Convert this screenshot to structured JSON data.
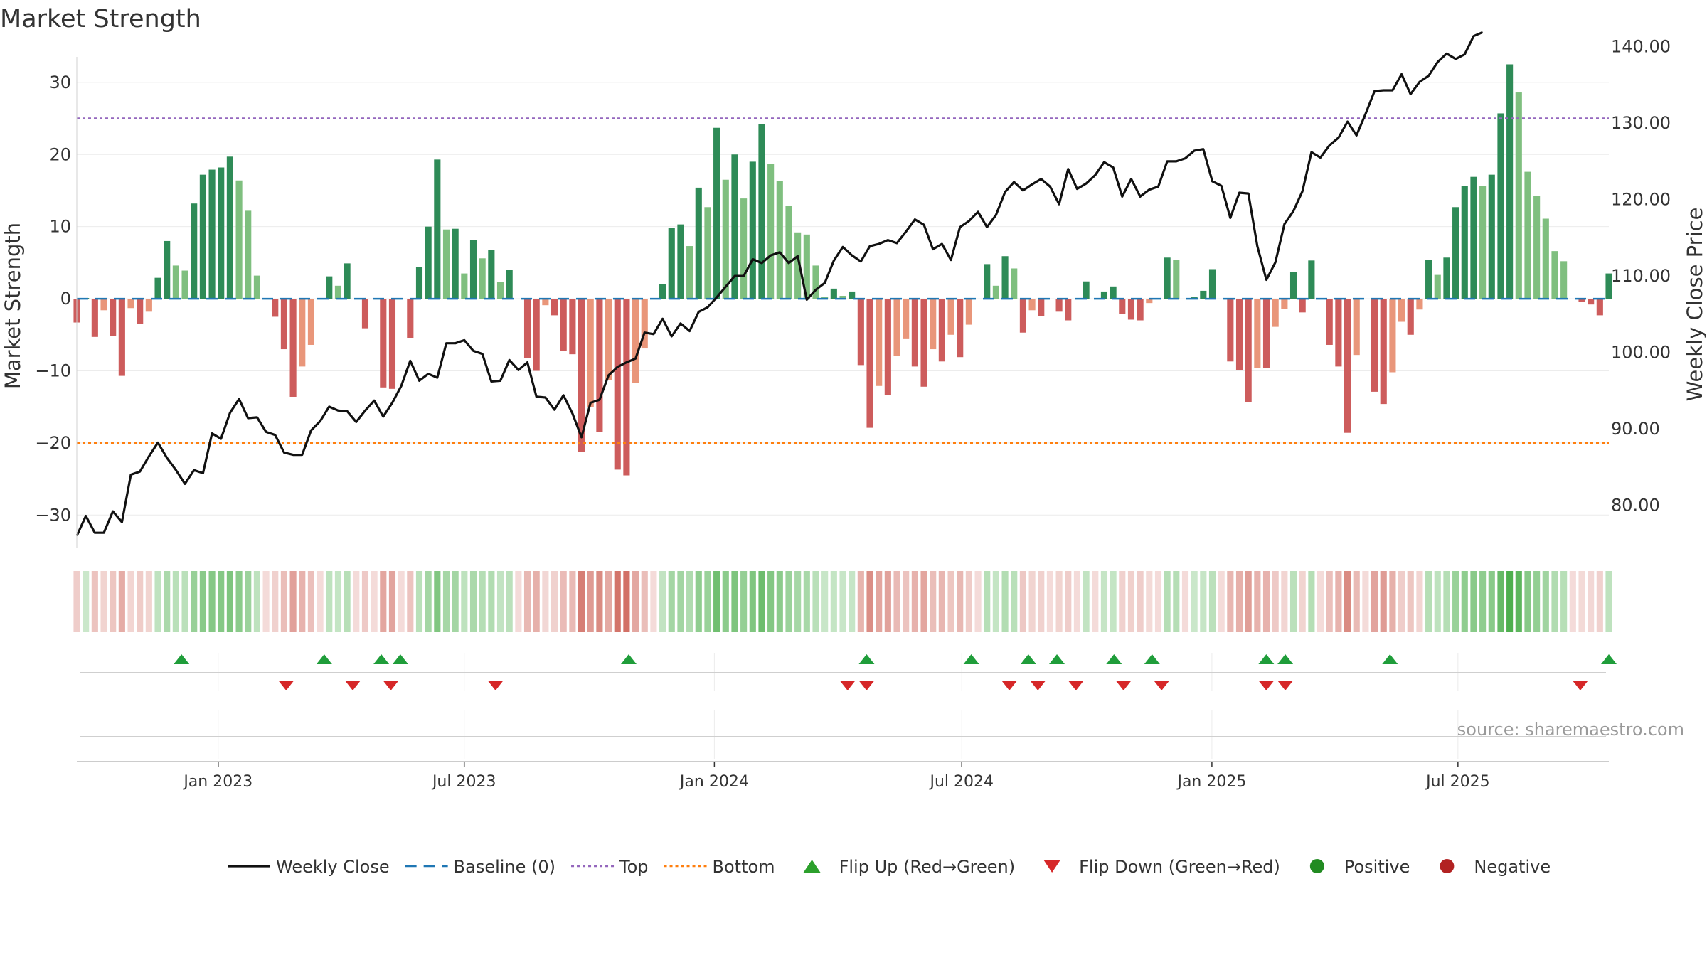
{
  "chart_data": {
    "type": "bar",
    "title": "Market Strength",
    "ylabel": "Market Strength",
    "y2label": "Weekly Close Price",
    "ylim": [
      -35,
      36
    ],
    "y2lim": [
      74,
      141
    ],
    "yticks": [
      -30,
      -20,
      -10,
      0,
      10,
      20,
      30
    ],
    "yticklabels": [
      "−30",
      "−20",
      "−10",
      "0",
      "10",
      "20",
      "30"
    ],
    "y2ticks": [
      80,
      90,
      100,
      110,
      120,
      130,
      140
    ],
    "y2ticklabels": [
      "80.00",
      "90.00",
      "100.00",
      "110.00",
      "120.00",
      "130.00",
      "140.00"
    ],
    "x_start": "2022-09-19",
    "x_end": "2025-10-20",
    "xticks": [
      "2023-01-01",
      "2023-07-01",
      "2024-01-01",
      "2024-07-01",
      "2025-01-01",
      "2025-07-01"
    ],
    "xticklabels": [
      "Jan 2023",
      "Jul 2023",
      "Jan 2024",
      "Jul 2024",
      "Jan 2025",
      "Jul 2025"
    ],
    "top_line": 25,
    "bottom_line": -20,
    "grid": true,
    "source": "source: sharemaestro.com",
    "strength": [
      -3.3,
      0.1,
      -5.3,
      -1.6,
      -5.2,
      -10.7,
      -1.3,
      -3.5,
      -1.8,
      2.9,
      8.0,
      4.6,
      3.9,
      13.2,
      17.2,
      17.9,
      18.2,
      19.7,
      16.4,
      12.2,
      3.2,
      0,
      -2.5,
      -7.0,
      -13.6,
      -9.4,
      -6.4,
      0,
      3.1,
      1.8,
      4.9,
      0,
      -4.1,
      0,
      -12.3,
      -12.5,
      0,
      -5.5,
      4.4,
      10.0,
      19.3,
      9.6,
      9.7,
      3.5,
      8.1,
      5.6,
      6.8,
      2.3,
      4.0,
      0,
      -8.2,
      -10.0,
      -0.9,
      -2.3,
      -7.2,
      -7.7,
      -21.2,
      -15.0,
      -18.5,
      -11.3,
      -23.7,
      -24.5,
      -11.7,
      -6.9,
      0,
      2.0,
      9.8,
      10.3,
      7.3,
      15.4,
      12.7,
      23.7,
      16.5,
      20.0,
      13.9,
      19.0,
      24.2,
      18.7,
      16.3,
      12.9,
      9.2,
      8.9,
      4.6,
      0.3,
      1.4,
      0.4,
      1.0,
      -9.2,
      -17.9,
      -12.1,
      -13.4,
      -7.9,
      -5.6,
      -9.4,
      -12.2,
      -7.0,
      -8.7,
      -5.0,
      -8.1,
      -3.6,
      0,
      4.8,
      1.8,
      5.9,
      4.2,
      -4.7,
      -1.6,
      -2.4,
      0,
      -1.8,
      -3.0,
      0,
      2.4,
      0,
      1.0,
      1.7,
      -2.1,
      -2.9,
      -3.0,
      -0.6,
      0,
      5.7,
      5.4,
      0,
      0.2,
      1.1,
      4.1,
      0,
      -8.7,
      -9.9,
      -14.3,
      -9.6,
      -9.6,
      -3.9,
      -1.4,
      3.7,
      -1.9,
      5.3,
      0,
      -6.4,
      -9.4,
      -18.6,
      -7.8,
      0,
      -12.9,
      -14.6,
      -10.2,
      -3.2,
      -5.0,
      -1.5,
      5.4,
      3.3,
      5.7,
      12.7,
      15.6,
      16.9,
      15.6,
      17.2,
      25.7,
      32.5,
      28.6,
      17.6,
      14.3,
      11.1,
      6.6,
      5.2,
      0,
      -0.4,
      -0.8,
      -2.3,
      3.5
    ],
    "close": [
      76.0,
      78.6,
      76.4,
      76.4,
      79.2,
      77.8,
      84.0,
      84.4,
      86.4,
      88.2,
      86.2,
      84.6,
      82.8,
      84.6,
      84.2,
      89.4,
      88.7,
      92.1,
      93.9,
      91.4,
      91.5,
      89.6,
      89.2,
      86.9,
      86.6,
      86.6,
      89.8,
      91.0,
      92.9,
      92.4,
      92.3,
      90.9,
      92.4,
      93.7,
      91.6,
      93.4,
      95.6,
      98.9,
      96.3,
      97.2,
      96.7,
      101.2,
      101.2,
      101.6,
      100.2,
      99.8,
      96.2,
      96.3,
      99.0,
      97.7,
      98.7,
      94.2,
      94.1,
      92.5,
      94.4,
      92.0,
      88.9,
      93.4,
      93.8,
      97.0,
      98.1,
      98.7,
      99.2,
      102.6,
      102.4,
      104.4,
      102.1,
      103.8,
      102.8,
      105.3,
      105.9,
      107.2,
      108.6,
      110.0,
      110.0,
      112.2,
      111.7,
      112.7,
      113.1,
      111.7,
      112.6,
      106.9,
      108.2,
      109.1,
      112.0,
      113.8,
      112.7,
      111.9,
      113.9,
      114.2,
      114.7,
      114.3,
      115.8,
      117.4,
      116.7,
      113.5,
      114.2,
      112.1,
      116.4,
      117.2,
      118.4,
      116.4,
      118.0,
      121.0,
      122.3,
      121.2,
      122.0,
      122.7,
      121.7,
      119.4,
      124.0,
      121.4,
      122.1,
      123.2,
      124.9,
      124.2,
      120.4,
      122.7,
      120.4,
      121.3,
      121.7,
      125.0,
      125.0,
      125.4,
      126.4,
      126.6,
      122.4,
      121.8,
      117.6,
      120.9,
      120.8,
      113.9,
      109.5,
      111.8,
      116.8,
      118.5,
      121.1,
      126.2,
      125.5,
      127.1,
      128.1,
      130.2,
      128.4,
      131.2,
      134.2,
      134.3,
      134.3,
      136.4,
      133.8,
      135.4,
      136.2,
      138.0,
      139.1,
      138.4,
      139.0,
      141.4,
      141.9
    ],
    "flip_up": [
      "2022-12-05",
      "2023-03-20",
      "2023-05-01",
      "2023-05-15",
      "2023-10-30",
      "2024-04-22",
      "2024-07-08",
      "2024-08-19",
      "2024-09-09",
      "2024-10-21",
      "2024-11-18",
      "2025-02-10",
      "2025-02-24",
      "2025-05-12",
      "2025-10-20"
    ],
    "flip_down": [
      "2023-02-20",
      "2023-04-10",
      "2023-05-08",
      "2023-07-24",
      "2024-04-08",
      "2024-04-22",
      "2024-08-05",
      "2024-08-26",
      "2024-09-23",
      "2024-10-28",
      "2024-11-25",
      "2025-02-10",
      "2025-02-24",
      "2025-09-29"
    ],
    "legend": [
      {
        "label": "Weekly Close",
        "kind": "line",
        "color": "#111111"
      },
      {
        "label": "Baseline (0)",
        "kind": "dash",
        "color": "#1f77b4"
      },
      {
        "label": "Top",
        "kind": "dot",
        "color": "#9467bd"
      },
      {
        "label": "Bottom",
        "kind": "dot",
        "color": "#ff7f0e"
      },
      {
        "label": "Flip Up (Red→Green)",
        "kind": "tri-up",
        "color": "#2ca02c"
      },
      {
        "label": "Flip Down (Green→Red)",
        "kind": "tri-down",
        "color": "#d62728"
      },
      {
        "label": "Positive",
        "kind": "circle",
        "color": "#228b22"
      },
      {
        "label": "Negative",
        "kind": "circle",
        "color": "#b22222"
      }
    ],
    "colors": {
      "pos_strong": "#2e8b57",
      "pos_weak": "#7fbf7f",
      "neg_strong": "#cd5c5c",
      "neg_weak": "#e9967a",
      "close_line": "#111111",
      "baseline": "#1f77b4",
      "top": "#9467bd",
      "bottom": "#ff7f0e"
    }
  }
}
